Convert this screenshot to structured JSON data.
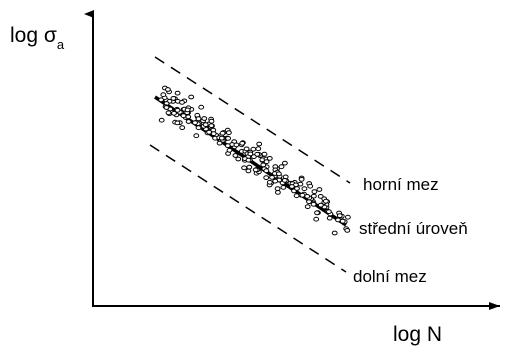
{
  "chart_data": {
    "type": "scatter",
    "xlabel": "log N",
    "ylabel": "log σ",
    "ylabel_subscript": "a",
    "grid": false,
    "ticks": false,
    "lines": [
      {
        "label": "horní mez",
        "style": "dashed"
      },
      {
        "label": "střední úroveň",
        "style": "solid"
      },
      {
        "label": "dolní mez",
        "style": "dashed"
      }
    ],
    "point_count": 230,
    "point_style": "small hollow circles scattered around the middle line"
  }
}
